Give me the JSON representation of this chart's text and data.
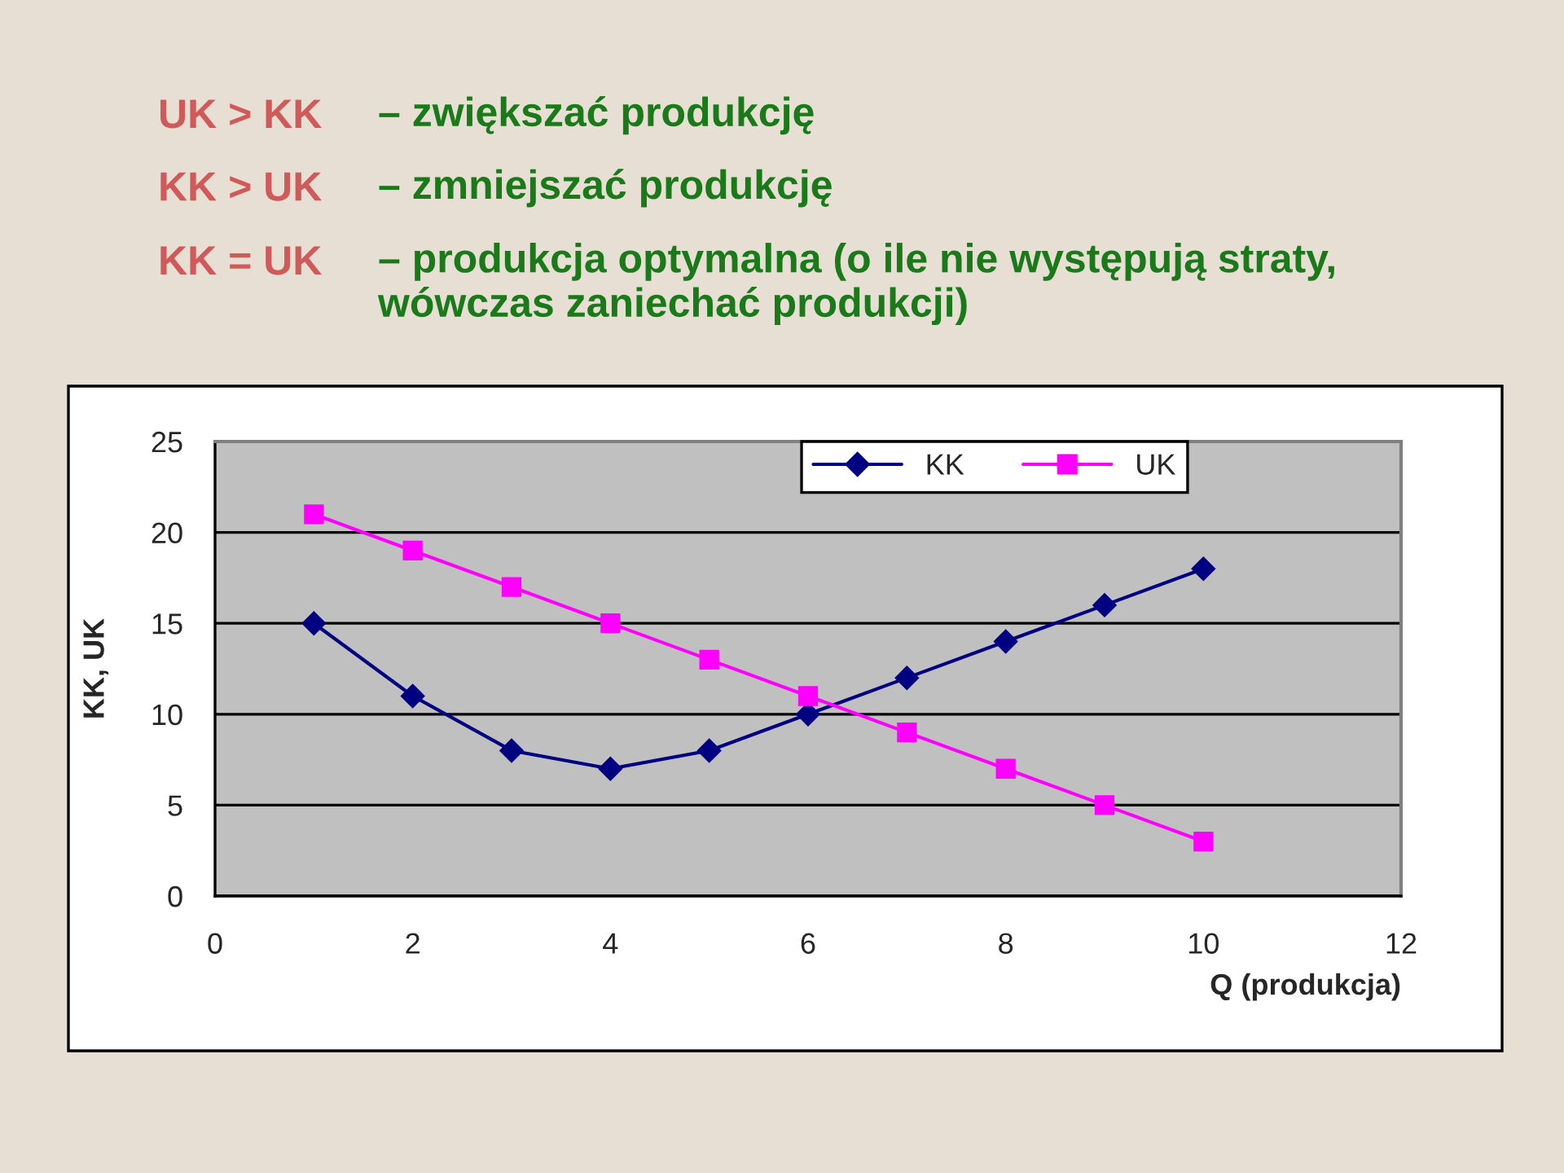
{
  "chart_data": {
    "type": "line",
    "annotations": [
      "UK > KK",
      "– zwiększać produkcję",
      "KK > UK",
      "– zmniejszać produkcję",
      "KK = UK",
      "– produkcja optymalna (o ile nie występują straty,\nwówczas zaniechać produkcji)"
    ],
    "xlabel": "Q (produkcja)",
    "ylabel": "KK, UK",
    "x": [
      1,
      2,
      3,
      4,
      5,
      6,
      7,
      8,
      9,
      10
    ],
    "series": [
      {
        "name": "KK",
        "color": "#000080",
        "marker": "diamond",
        "values": [
          15,
          11,
          8,
          7,
          8,
          10,
          12,
          14,
          16,
          18
        ]
      },
      {
        "name": "UK",
        "color": "#ff00ff",
        "marker": "square",
        "values": [
          21,
          19,
          17,
          15,
          13,
          11,
          9,
          7,
          5,
          3
        ]
      }
    ],
    "xlim": [
      0,
      12
    ],
    "xticks": [
      0,
      2,
      4,
      6,
      8,
      10,
      12
    ],
    "ylim": [
      0,
      25
    ],
    "yticks": [
      0,
      5,
      10,
      15,
      20,
      25
    ],
    "grid": "y",
    "legend": "top right",
    "line_style": "solid"
  }
}
